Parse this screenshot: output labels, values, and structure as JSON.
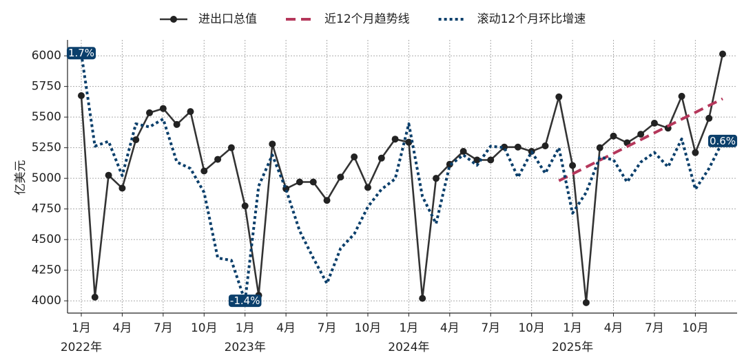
{
  "chart_data": {
    "type": "line",
    "categories": [
      "1月",
      null,
      null,
      "4月",
      null,
      null,
      "7月",
      null,
      null,
      "10月",
      null,
      null,
      "1月",
      null,
      null,
      "4月",
      null,
      null,
      "7月",
      null,
      null,
      "10月",
      null,
      null,
      "1月",
      null,
      null,
      "4月",
      null,
      null,
      "7月",
      null,
      null,
      "10月",
      null,
      null,
      "1月",
      null,
      null,
      "4月",
      null,
      null,
      "7月",
      null,
      null,
      "10月",
      null,
      null
    ],
    "year_labels": [
      "2022年",
      "2023年",
      "2024年",
      "2025年"
    ],
    "y_label": "亿美元",
    "ylim": [
      3900,
      6130
    ],
    "yticks": [
      4000,
      4250,
      4500,
      4750,
      5000,
      5250,
      5500,
      5750,
      6000
    ],
    "y2lim": [
      -1.55,
      1.87
    ],
    "grid": true,
    "legend": "top",
    "series": [
      {
        "name": "进出口总值",
        "color": "#333333",
        "style": "solid-marker",
        "values": [
          5675,
          4030,
          5025,
          4920,
          5315,
          5535,
          5570,
          5440,
          5545,
          5060,
          5155,
          5250,
          4775,
          4045,
          5280,
          4915,
          4970,
          4970,
          4820,
          5010,
          5175,
          4925,
          5165,
          5320,
          5295,
          4020,
          5000,
          5115,
          5220,
          5150,
          5150,
          5255,
          5255,
          5220,
          5265,
          5665,
          5105,
          3985,
          5250,
          5345,
          5290,
          5360,
          5450,
          5410,
          5670,
          5210,
          5490,
          6015
        ]
      },
      {
        "name": "近12个月趋势线",
        "color": "#b5375b",
        "style": "dashed",
        "values": [
          null,
          null,
          null,
          null,
          null,
          null,
          null,
          null,
          null,
          null,
          null,
          null,
          null,
          null,
          null,
          null,
          null,
          null,
          null,
          null,
          null,
          null,
          null,
          null,
          null,
          null,
          null,
          null,
          null,
          null,
          null,
          null,
          null,
          null,
          null,
          4980,
          5036,
          5092,
          5148,
          5203,
          5259,
          5315,
          5371,
          5427,
          5483,
          5538,
          5594,
          5650
        ]
      },
      {
        "name": "滚动12个月环比增速",
        "color": "#0b3f6b",
        "style": "dotted",
        "axis": "y2",
        "values": [
          1.7,
          0.54,
          0.6,
          0.17,
          0.82,
          0.78,
          0.88,
          0.34,
          0.26,
          -0.04,
          -0.86,
          -0.89,
          -1.4,
          0.04,
          0.43,
          0,
          -0.52,
          -0.86,
          -1.18,
          -0.74,
          -0.56,
          -0.22,
          0,
          0.13,
          0.82,
          -0.09,
          -0.43,
          0.3,
          0.43,
          0.3,
          0.54,
          0.52,
          0.15,
          0.47,
          0.2,
          0.52,
          -0.3,
          -0.04,
          0.4,
          0.37,
          0.09,
          0.34,
          0.46,
          0.28,
          0.63,
          0,
          0.26,
          0.6
        ],
        "value_labels": [
          "1.7%",
          null,
          null,
          null,
          null,
          null,
          null,
          null,
          null,
          null,
          null,
          null,
          "-1.4%",
          null,
          null,
          null,
          null,
          null,
          null,
          null,
          null,
          null,
          null,
          null,
          null,
          null,
          null,
          null,
          null,
          null,
          null,
          null,
          null,
          null,
          null,
          null,
          null,
          null,
          null,
          null,
          null,
          null,
          null,
          null,
          null,
          null,
          null,
          "0.6%"
        ]
      }
    ]
  }
}
